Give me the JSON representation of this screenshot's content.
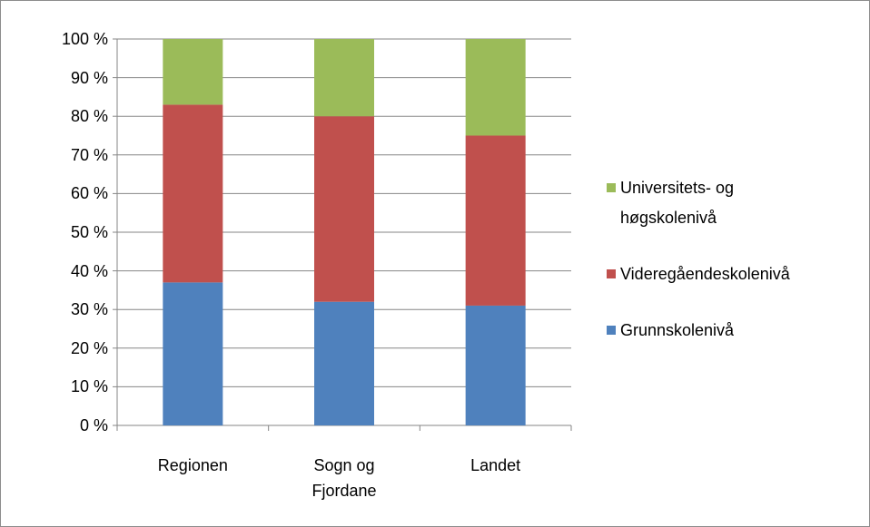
{
  "chart_data": {
    "type": "stacked_bar",
    "categories": [
      "Regionen",
      "Sogn og Fjordane",
      "Landet"
    ],
    "series": [
      {
        "name": "Grunnskolenivå",
        "color": "#4f81bd",
        "values": [
          37,
          32,
          31
        ]
      },
      {
        "name": "Videregåendeskolenivå",
        "color": "#c0504d",
        "values": [
          46,
          48,
          44
        ]
      },
      {
        "name": "Universitets- og høgskolenivå",
        "color": "#9bbb59",
        "values": [
          17,
          20,
          25
        ]
      }
    ],
    "ylim": [
      0,
      100
    ],
    "yticks": [
      {
        "value": 0,
        "label": "0 %"
      },
      {
        "value": 10,
        "label": "10 %"
      },
      {
        "value": 20,
        "label": "20 %"
      },
      {
        "value": 30,
        "label": "30 %"
      },
      {
        "value": 40,
        "label": "40 %"
      },
      {
        "value": 50,
        "label": "50 %"
      },
      {
        "value": 60,
        "label": "60 %"
      },
      {
        "value": 70,
        "label": "70 %"
      },
      {
        "value": 80,
        "label": "80 %"
      },
      {
        "value": 90,
        "label": "90 %"
      },
      {
        "value": 100,
        "label": "100 %"
      }
    ],
    "grid": true,
    "legend": "right"
  }
}
